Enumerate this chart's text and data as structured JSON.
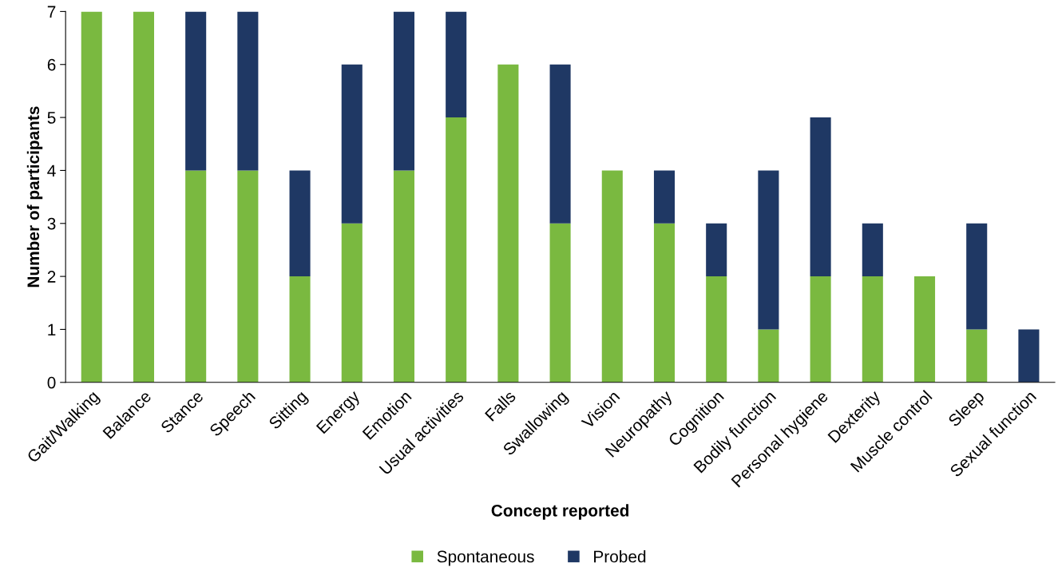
{
  "chart_data": {
    "type": "bar",
    "stacked": true,
    "xlabel": "Concept reported",
    "ylabel": "Number of participants",
    "categories": [
      "Gait/Walking",
      "Balance",
      "Stance",
      "Speech",
      "Sitting",
      "Energy",
      "Emotion",
      "Usual activities",
      "Falls",
      "Swallowing",
      "Vision",
      "Neuropathy",
      "Cognition",
      "Bodily function",
      "Personal hygiene",
      "Dexterity",
      "Muscle control",
      "Sleep",
      "Sexual function"
    ],
    "series": [
      {
        "name": "Spontaneous",
        "color": "#7ab940",
        "values": [
          7,
          7,
          4,
          4,
          2,
          3,
          4,
          5,
          6,
          3,
          4,
          3,
          2,
          1,
          2,
          2,
          2,
          1,
          0
        ]
      },
      {
        "name": "Probed",
        "color": "#1f3864",
        "values": [
          0,
          0,
          3,
          3,
          2,
          3,
          3,
          2,
          0,
          3,
          0,
          1,
          1,
          3,
          3,
          1,
          0,
          2,
          1
        ]
      }
    ],
    "ylim": [
      0,
      7
    ],
    "yticks": [
      0,
      1,
      2,
      3,
      4,
      5,
      6,
      7
    ],
    "grid": false,
    "legend": "bottom"
  }
}
